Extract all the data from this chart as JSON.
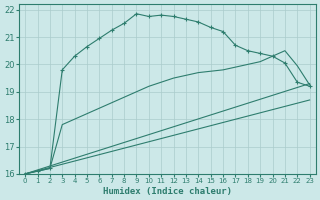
{
  "xlabel": "Humidex (Indice chaleur)",
  "background_color": "#cce8e8",
  "line_color": "#2e7d6e",
  "grid_color": "#aacccc",
  "xlim": [
    -0.5,
    23.5
  ],
  "ylim": [
    16,
    22.2
  ],
  "xticks": [
    0,
    1,
    2,
    3,
    4,
    5,
    6,
    7,
    8,
    9,
    10,
    11,
    12,
    13,
    14,
    15,
    16,
    17,
    18,
    19,
    20,
    21,
    22,
    23
  ],
  "yticks": [
    16,
    17,
    18,
    19,
    20,
    21,
    22
  ],
  "series": [
    {
      "x": [
        0,
        1,
        2,
        3,
        4,
        5,
        6,
        7,
        8,
        9,
        10,
        11,
        12,
        13,
        14,
        15,
        16,
        17,
        18,
        19,
        20,
        21,
        22,
        23
      ],
      "y": [
        16.0,
        16.1,
        16.2,
        19.8,
        20.3,
        20.65,
        20.95,
        21.25,
        21.5,
        21.85,
        21.75,
        21.8,
        21.75,
        21.65,
        21.55,
        21.35,
        21.2,
        20.7,
        20.5,
        20.4,
        20.3,
        20.05,
        19.35,
        19.2
      ],
      "with_marker": true
    },
    {
      "x": [
        0,
        2,
        3,
        10,
        11,
        12,
        13,
        14,
        15,
        16,
        17,
        18,
        19,
        20,
        21,
        22,
        23
      ],
      "y": [
        16.0,
        16.2,
        17.8,
        19.2,
        19.35,
        19.5,
        19.6,
        19.7,
        19.75,
        19.8,
        19.9,
        20.0,
        20.1,
        20.3,
        20.5,
        19.95,
        19.25
      ],
      "with_marker": false
    },
    {
      "x": [
        0,
        23
      ],
      "y": [
        16.0,
        19.3
      ],
      "with_marker": false
    },
    {
      "x": [
        0,
        23
      ],
      "y": [
        16.0,
        18.7
      ],
      "with_marker": false
    }
  ]
}
